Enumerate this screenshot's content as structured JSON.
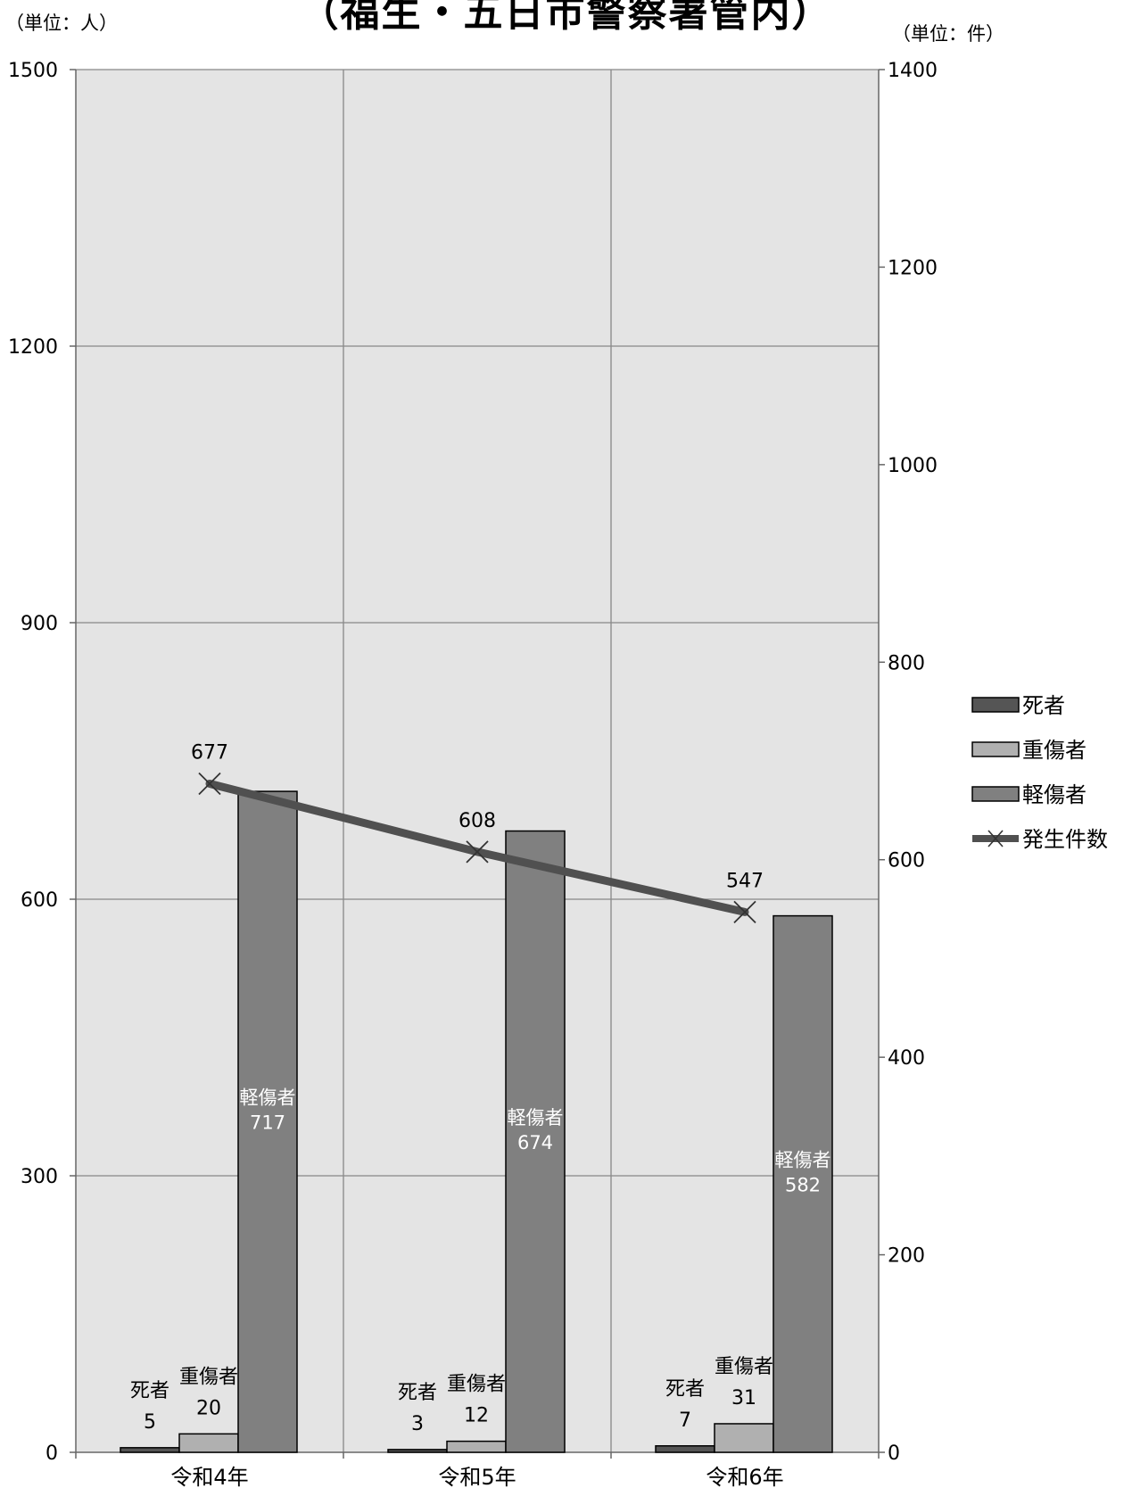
{
  "chart_data": {
    "type": "bar",
    "title": "（福生・五日市警察署管内）",
    "y_left_unit": "（単位：人）",
    "y_right_unit": "（単位：件）",
    "categories": [
      "令和4年",
      "令和5年",
      "令和6年"
    ],
    "y_left_range": [
      0,
      1500
    ],
    "y_left_ticks": [
      0,
      300,
      600,
      900,
      1200,
      1500
    ],
    "y_right_range": [
      0,
      1400
    ],
    "y_right_ticks": [
      0,
      200,
      400,
      600,
      800,
      1000,
      1200,
      1400
    ],
    "grid": true,
    "legend_position": "right",
    "series": [
      {
        "name": "死者",
        "type": "bar",
        "axis": "left",
        "color": "#555555",
        "values": [
          5,
          3,
          7
        ]
      },
      {
        "name": "重傷者",
        "type": "bar",
        "axis": "left",
        "color": "#b0b0b0",
        "values": [
          20,
          12,
          31
        ]
      },
      {
        "name": "軽傷者",
        "type": "bar",
        "axis": "left",
        "color": "#808080",
        "values": [
          717,
          674,
          582
        ]
      },
      {
        "name": "発生件数",
        "type": "line",
        "axis": "right",
        "color": "#505050",
        "values": [
          677,
          608,
          547
        ]
      }
    ]
  }
}
